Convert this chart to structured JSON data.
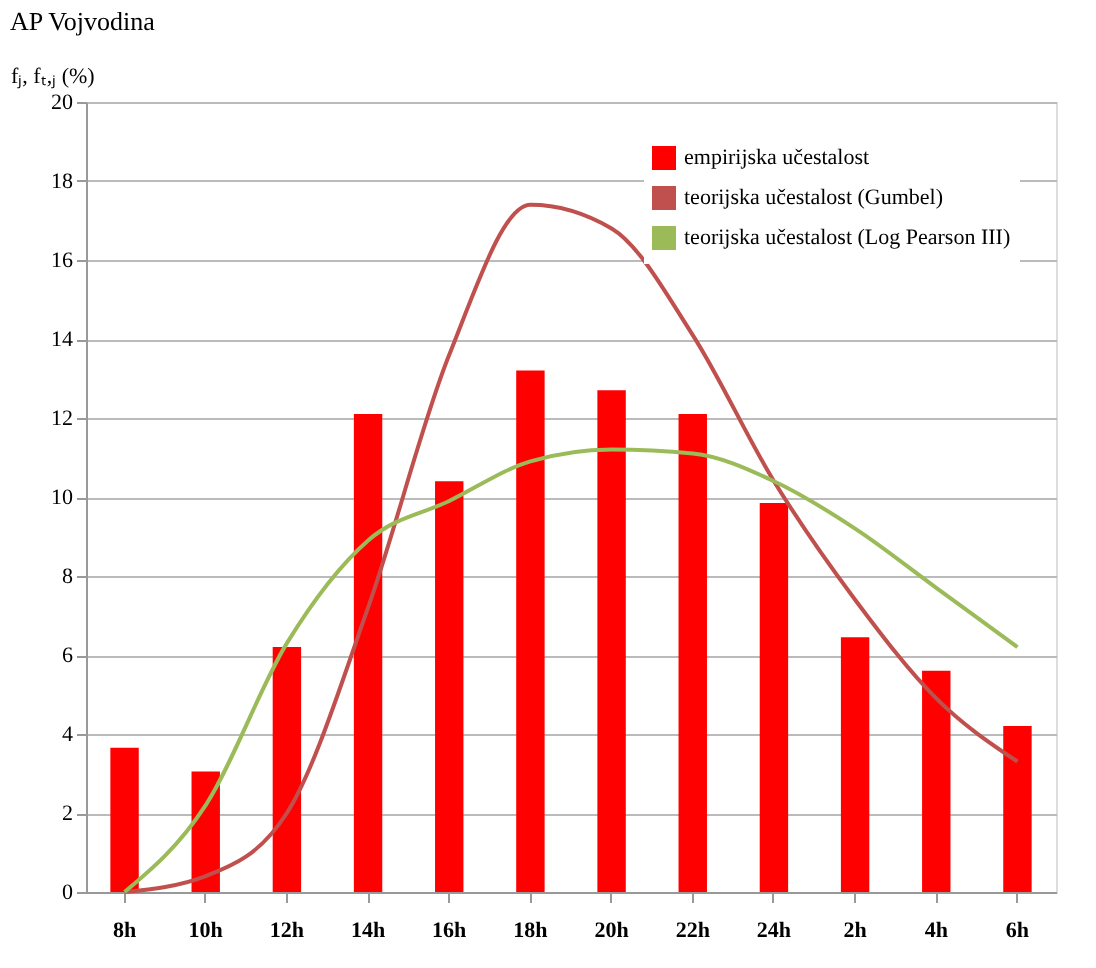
{
  "chart_data": {
    "type": "bar",
    "title": "AP Vojvodina",
    "ylabel": "fⱼ, fₜ,ⱼ (%)",
    "categories": [
      "8h",
      "10h",
      "12h",
      "14h",
      "16h",
      "18h",
      "20h",
      "22h",
      "24h",
      "2h",
      "4h",
      "6h"
    ],
    "series": [
      {
        "name": "empirijska učestalost",
        "color": "#ff0000",
        "values": [
          3.65,
          3.05,
          6.2,
          12.1,
          10.4,
          13.2,
          12.7,
          12.1,
          9.85,
          6.45,
          5.6,
          4.2
        ]
      },
      {
        "name": "teorijska učestalost (Gumbel)",
        "type": "line",
        "color": "#c0504d",
        "values": [
          0,
          0.4,
          2.0,
          7.2,
          13.6,
          17.4,
          16.8,
          14.1,
          10.4,
          7.4,
          4.9,
          3.3
        ]
      },
      {
        "name": "teorijska učestalost (Log Pearson III)",
        "type": "line",
        "color": "#9bbb59",
        "values": [
          0,
          2.2,
          6.3,
          8.9,
          9.9,
          10.9,
          11.2,
          11.1,
          10.4,
          9.2,
          7.7,
          6.2
        ]
      }
    ],
    "ylim": [
      0,
      20
    ],
    "yticks": [
      0,
      2,
      4,
      6,
      8,
      10,
      12,
      14,
      16,
      18,
      20
    ],
    "grid": "y",
    "legend": "top right",
    "marker": "none",
    "line_style": "solid"
  }
}
